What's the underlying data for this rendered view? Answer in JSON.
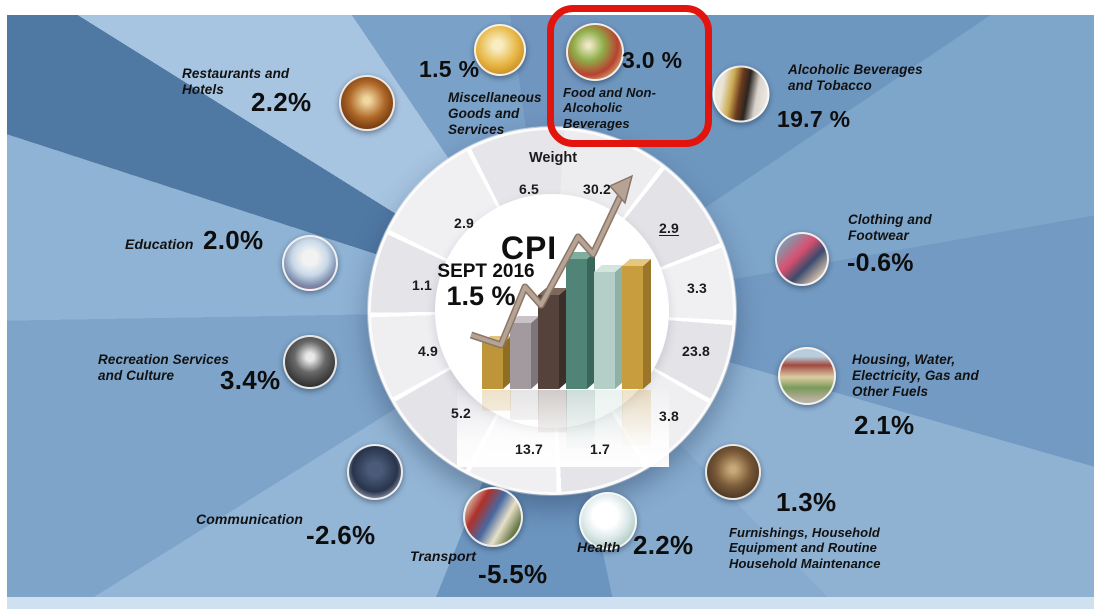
{
  "chart_data": {
    "type": "radial-infographic",
    "title": "CPI",
    "subtitle": "SEPT 2016",
    "overall_value": "1.5 %",
    "weight_column_label": "Weight",
    "highlighted_category": "Food and Non-Alcoholic Beverages",
    "highlight_box_color": "#e2140e",
    "legend_position": "none",
    "categories": [
      {
        "name": "Food and Non-Alcoholic Beverages",
        "rate": "3.0 %",
        "weight": "30.2",
        "icon": "food-icon",
        "highlighted": true
      },
      {
        "name": "Alcoholic Beverages and Tobacco",
        "rate": "19.7 %",
        "weight": "2.9",
        "icon": "alcohol-tobacco-icon",
        "weight_underlined": true
      },
      {
        "name": "Clothing and Footwear",
        "rate": "-0.6%",
        "weight": "3.3",
        "icon": "clothing-icon"
      },
      {
        "name": "Housing, Water, Electricity, Gas and Other Fuels",
        "rate": "2.1%",
        "weight": "23.8",
        "icon": "housing-icon"
      },
      {
        "name": "Furnishings, Household Equipment and Routine Household Maintenance",
        "rate": "1.3%",
        "weight": "3.8",
        "icon": "furnishings-icon"
      },
      {
        "name": "Health",
        "rate": "2.2%",
        "weight": "1.7",
        "icon": "health-icon"
      },
      {
        "name": "Transport",
        "rate": "-5.5%",
        "weight": "13.7",
        "icon": "transport-icon"
      },
      {
        "name": "Communication",
        "rate": "-2.6%",
        "weight": "5.2",
        "icon": "communication-icon"
      },
      {
        "name": "Recreation Services and Culture",
        "rate": "3.4%",
        "weight": "4.9",
        "icon": "recreation-icon"
      },
      {
        "name": "Education",
        "rate": "2.0%",
        "weight": "1.1",
        "icon": "education-icon"
      },
      {
        "name": "Restaurants and Hotels",
        "rate": "2.2%",
        "weight": "2.9",
        "icon": "restaurants-hotels-icon"
      },
      {
        "name": "Miscellaneous Goods and Services",
        "rate": "1.5 %",
        "weight": "6.5",
        "icon": "misc-goods-icon"
      }
    ],
    "trend_bars": {
      "note": "decorative 3D bar chart with rising zig-zag arrow in medallion center",
      "relative_heights": [
        46,
        66,
        94,
        130,
        117,
        123
      ]
    }
  }
}
